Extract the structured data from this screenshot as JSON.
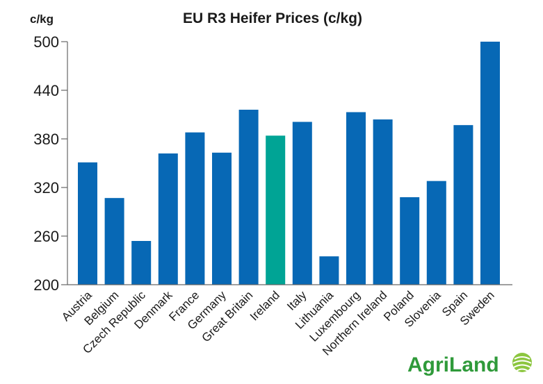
{
  "chart_data": {
    "type": "bar",
    "title": "EU R3 Heifer Prices (c/kg)",
    "ylabel": "c/kg",
    "xlabel": "",
    "ylim": [
      200,
      500
    ],
    "yticks": [
      200,
      260,
      320,
      380,
      440,
      500
    ],
    "grid": false,
    "categories": [
      "Austria",
      "Belgium",
      "Czech Republic",
      "Denmark",
      "France",
      "Germany",
      "Great Britain",
      "Ireland",
      "Italy",
      "Lithuania",
      "Luxembourg",
      "Northern Ireland",
      "Poland",
      "Slovenia",
      "Spain",
      "Sweden"
    ],
    "values": [
      351,
      307,
      254,
      362,
      388,
      363,
      416,
      384,
      401,
      235,
      413,
      404,
      308,
      328,
      397,
      500
    ],
    "highlight": "Ireland",
    "colors": {
      "bar": "#0768b5",
      "highlight": "#00a495",
      "axis": "#666666",
      "text": "#1a1a1a"
    }
  },
  "logo": {
    "text": "AgriLand",
    "colors": {
      "primary": "#2f9a3a",
      "secondary": "#8cc63f"
    },
    "icon": "wheat-ear-icon"
  }
}
